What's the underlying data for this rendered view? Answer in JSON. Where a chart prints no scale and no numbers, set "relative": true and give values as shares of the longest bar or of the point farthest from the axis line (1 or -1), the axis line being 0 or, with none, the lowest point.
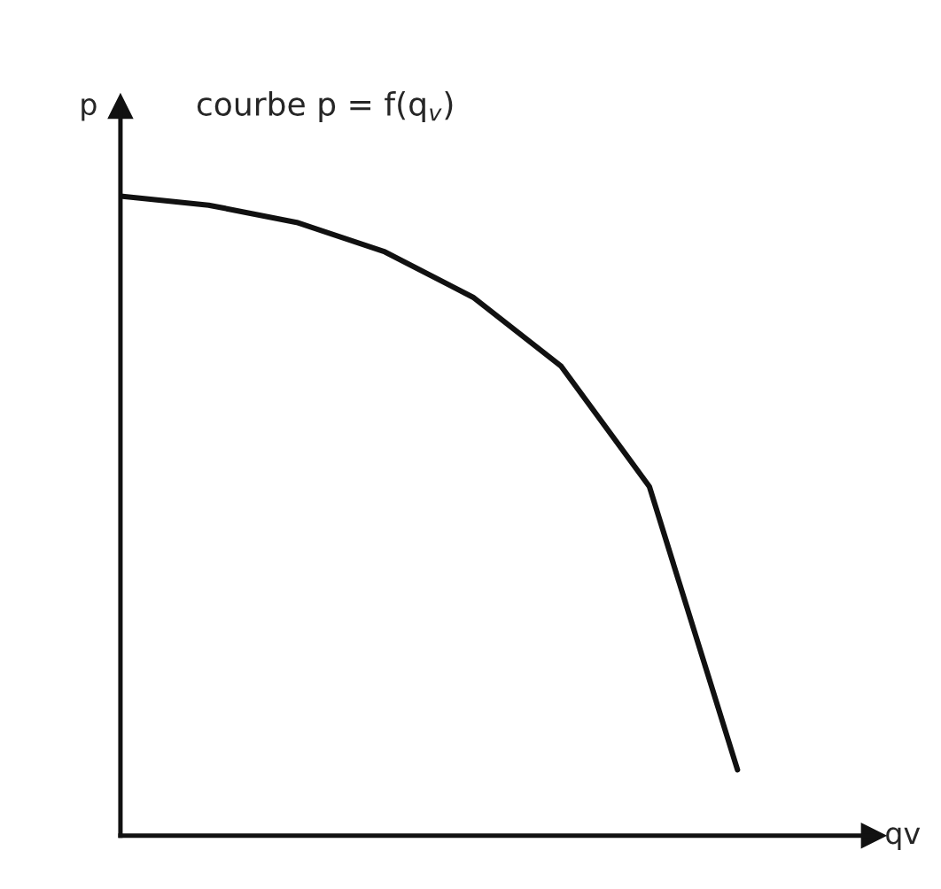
{
  "chart_data": {
    "type": "line",
    "relative": true,
    "xlabel": "qv",
    "ylabel": "p",
    "annotations": [
      "courbe p = f(q$_{v}$)"
    ],
    "categories": [
      null,
      null,
      null,
      null,
      null,
      null,
      null,
      null
    ],
    "series": [
      {
        "color": "#111111",
        "values": [
          1,
          0.986,
          0.959,
          0.913,
          0.842,
          0.734,
          0.546,
          0.103
        ]
      }
    ],
    "marker": "none",
    "line_style": "solid"
  }
}
